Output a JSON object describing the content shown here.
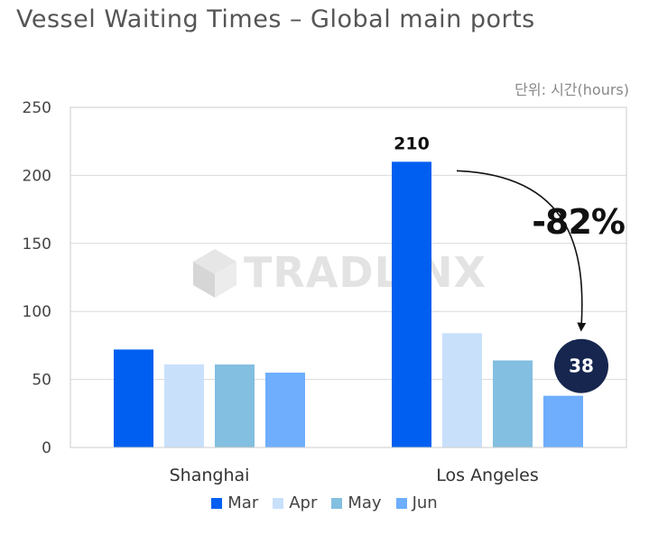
{
  "chart_data": {
    "type": "bar",
    "title": "Vessel Waiting Times – Global main ports",
    "unit_label": "단위: 시간(hours)",
    "categories": [
      "Shanghai",
      "Los Angeles"
    ],
    "series": [
      {
        "name": "Mar",
        "values": [
          72,
          210
        ],
        "color": "#005ff0"
      },
      {
        "name": "Apr",
        "values": [
          61,
          84
        ],
        "color": "#c9e0fb"
      },
      {
        "name": "May",
        "values": [
          61,
          64
        ],
        "color": "#83bfe0"
      },
      {
        "name": "Jun",
        "values": [
          55,
          38
        ],
        "color": "#6eaefc"
      }
    ],
    "ylim": [
      0,
      250
    ],
    "yticks": [
      0,
      50,
      100,
      150,
      200,
      250
    ],
    "grid": true,
    "legend_position": "bottom",
    "data_labels": [
      {
        "series": "Mar",
        "category": "Los Angeles",
        "text": "210",
        "style": "plain"
      },
      {
        "series": "Jun",
        "category": "Los Angeles",
        "text": "38",
        "style": "circle"
      }
    ],
    "annotation": {
      "text": "-82%",
      "from_series": "Mar",
      "to_series": "Jun",
      "category": "Los Angeles"
    },
    "watermark": "TRADLINX"
  }
}
